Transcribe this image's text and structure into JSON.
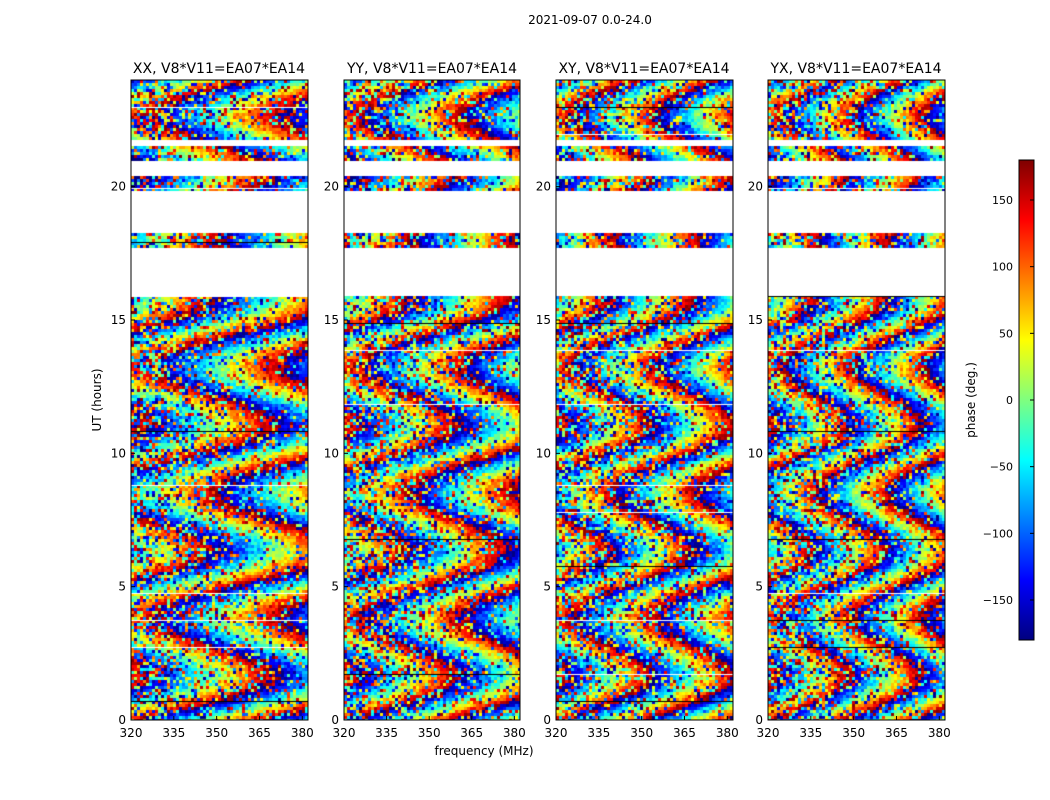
{
  "figure": {
    "suptitle": "2021-09-07 0.0-24.0"
  },
  "chart_data": [
    {
      "type": "heatmap",
      "title": "XX, V8*V11=EA07*EA14",
      "xlabel": "frequency (MHz)",
      "ylabel": "UT (hours)",
      "xlim": [
        320,
        382
      ],
      "ylim": [
        0,
        24
      ],
      "xticks": [
        "320",
        "335",
        "350",
        "365",
        "380"
      ],
      "yticks": [
        "0",
        "5",
        "10",
        "15",
        "20"
      ],
      "value_label": "phase (deg.)",
      "value_range": [
        -180,
        180
      ],
      "flagged_ut_ranges": [
        [
          15.9,
          17.7
        ],
        [
          18.3,
          19.8
        ],
        [
          20.45,
          21.0
        ],
        [
          21.5,
          21.7
        ]
      ]
    },
    {
      "type": "heatmap",
      "title": "YY, V8*V11=EA07*EA14",
      "xlabel": "frequency (MHz)",
      "ylabel": "UT (hours)",
      "xlim": [
        320,
        382
      ],
      "ylim": [
        0,
        24
      ],
      "xticks": [
        "320",
        "335",
        "350",
        "365",
        "380"
      ],
      "yticks": [
        "0",
        "5",
        "10",
        "15",
        "20"
      ],
      "value_label": "phase (deg.)",
      "value_range": [
        -180,
        180
      ],
      "flagged_ut_ranges": [
        [
          15.9,
          17.7
        ],
        [
          18.3,
          19.8
        ],
        [
          20.45,
          21.0
        ],
        [
          21.5,
          21.7
        ]
      ]
    },
    {
      "type": "heatmap",
      "title": "XY, V8*V11=EA07*EA14",
      "xlabel": "frequency (MHz)",
      "ylabel": "UT (hours)",
      "xlim": [
        320,
        382
      ],
      "ylim": [
        0,
        24
      ],
      "xticks": [
        "320",
        "335",
        "350",
        "365",
        "380"
      ],
      "yticks": [
        "0",
        "5",
        "10",
        "15",
        "20"
      ],
      "value_label": "phase (deg.)",
      "value_range": [
        -180,
        180
      ],
      "flagged_ut_ranges": [
        [
          15.9,
          17.7
        ],
        [
          18.3,
          19.8
        ],
        [
          20.45,
          21.0
        ],
        [
          21.5,
          21.7
        ]
      ]
    },
    {
      "type": "heatmap",
      "title": "YX, V8*V11=EA07*EA14",
      "xlabel": "frequency (MHz)",
      "ylabel": "UT (hours)",
      "xlim": [
        320,
        382
      ],
      "ylim": [
        0,
        24
      ],
      "xticks": [
        "320",
        "335",
        "350",
        "365",
        "380"
      ],
      "yticks": [
        "0",
        "5",
        "10",
        "15",
        "20"
      ],
      "value_label": "phase (deg.)",
      "value_range": [
        -180,
        180
      ],
      "flagged_ut_ranges": [
        [
          15.9,
          17.7
        ],
        [
          18.3,
          19.8
        ],
        [
          20.45,
          21.0
        ],
        [
          21.5,
          21.7
        ]
      ]
    }
  ],
  "axis_labels": {
    "xlabel": "frequency (MHz)",
    "ylabel": "UT (hours)"
  },
  "colorbar": {
    "label": "phase (deg.)",
    "min": -180,
    "max": 180,
    "ticks": [
      "150",
      "100",
      "50",
      "0",
      "−50",
      "−100",
      "−150"
    ],
    "tick_values": [
      150,
      100,
      50,
      0,
      -50,
      -100,
      -150
    ],
    "colormap": "jet",
    "colors": [
      "#00007f",
      "#0000ff",
      "#007fff",
      "#00ffff",
      "#7fff7f",
      "#ffff00",
      "#ff7f00",
      "#ff0000",
      "#7f0000"
    ]
  }
}
